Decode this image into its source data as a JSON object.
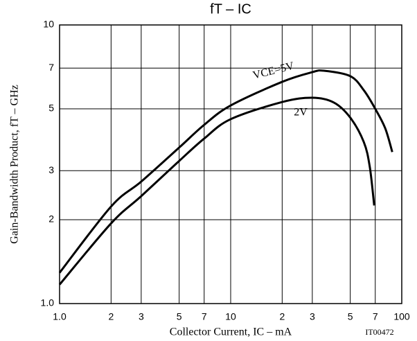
{
  "chart_data": {
    "type": "line",
    "title": "fT – IC",
    "x_label": "Collector Current, IC – mA",
    "y_label": "Gain-Bandwidth Product, fT – GHz",
    "code": "IT00472",
    "x_log": true,
    "y_log": true,
    "grid": true,
    "xlim": [
      1,
      100
    ],
    "ylim": [
      1,
      10
    ],
    "xticks": [
      {
        "value": 1,
        "label": "1.0"
      },
      2,
      3,
      5,
      7,
      10,
      {
        "value": 20,
        "label": "2"
      },
      {
        "value": 30,
        "label": "3"
      },
      {
        "value": 50,
        "label": "5"
      },
      {
        "value": 70,
        "label": "7"
      },
      100
    ],
    "yticks": [
      {
        "value": 1,
        "label": "1.0"
      },
      2,
      3,
      5,
      7,
      10
    ],
    "series": [
      {
        "name": "VCE=5V",
        "color": "#000000",
        "x": [
          1,
          2,
          3,
          5,
          7,
          10,
          20,
          30,
          35,
          50,
          60,
          70,
          80,
          88
        ],
        "values": [
          1.29,
          2.23,
          2.74,
          3.63,
          4.38,
          5.14,
          6.25,
          6.77,
          6.85,
          6.55,
          5.83,
          5.0,
          4.26,
          3.5
        ]
      },
      {
        "name": "2V",
        "color": "#000000",
        "x": [
          1,
          2,
          3,
          5,
          7,
          10,
          20,
          30,
          40,
          50,
          60,
          65,
          69
        ],
        "values": [
          1.17,
          1.94,
          2.43,
          3.25,
          3.91,
          4.59,
          5.29,
          5.48,
          5.27,
          4.65,
          3.8,
          3.1,
          2.25
        ]
      }
    ]
  }
}
